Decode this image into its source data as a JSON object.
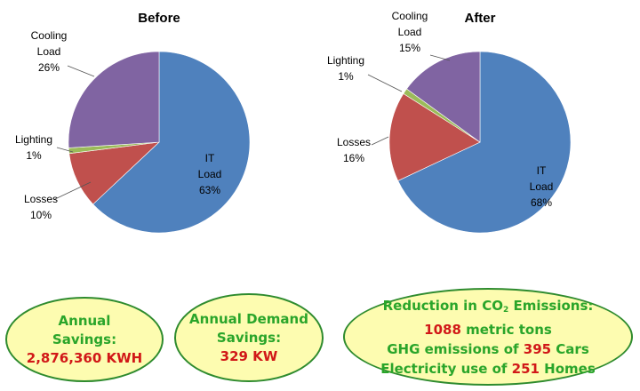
{
  "chart_data": [
    {
      "type": "pie",
      "title": "Before",
      "slices": [
        {
          "label": "IT Load",
          "value": 63,
          "display": "63%",
          "color": "#4f81bd"
        },
        {
          "label": "Losses",
          "value": 10,
          "display": "10%",
          "color": "#c0504d"
        },
        {
          "label": "Lighting",
          "value": 1,
          "display": "1%",
          "color": "#9bbb59"
        },
        {
          "label": "Cooling Load",
          "value": 26,
          "display": "26%",
          "color": "#8064a2"
        }
      ]
    },
    {
      "type": "pie",
      "title": "After",
      "slices": [
        {
          "label": "IT Load",
          "value": 68,
          "display": "68%",
          "color": "#4f81bd"
        },
        {
          "label": "Losses",
          "value": 16,
          "display": "16%",
          "color": "#c0504d"
        },
        {
          "label": "Lighting",
          "value": 1,
          "display": "1%",
          "color": "#9bbb59"
        },
        {
          "label": "Cooling Load",
          "value": 15,
          "display": "15%",
          "color": "#8064a2"
        }
      ]
    }
  ],
  "savings": {
    "energy": {
      "line1": "Annual",
      "line2": "Savings:",
      "value": "2,876,360 KWH"
    },
    "demand": {
      "line1": "Annual Demand",
      "line2": "Savings:",
      "value": "329 KW"
    },
    "emissions": {
      "title_pre": "Reduction in CO",
      "title_sub": "2",
      "title_post": " Emissions:",
      "tons_value": "1088",
      "tons_label": " metric tons",
      "ghg_pre": "GHG emissions of ",
      "ghg_value": "395",
      "ghg_post": " Cars",
      "elec_pre": "Electricity use of ",
      "elec_value": "251",
      "elec_post": " Homes"
    }
  },
  "colors": {
    "ellipse_fill": "#fdfcb0",
    "ellipse_border": "#2e8b2e",
    "green_text": "#2aa52a",
    "red_text": "#d11818"
  }
}
